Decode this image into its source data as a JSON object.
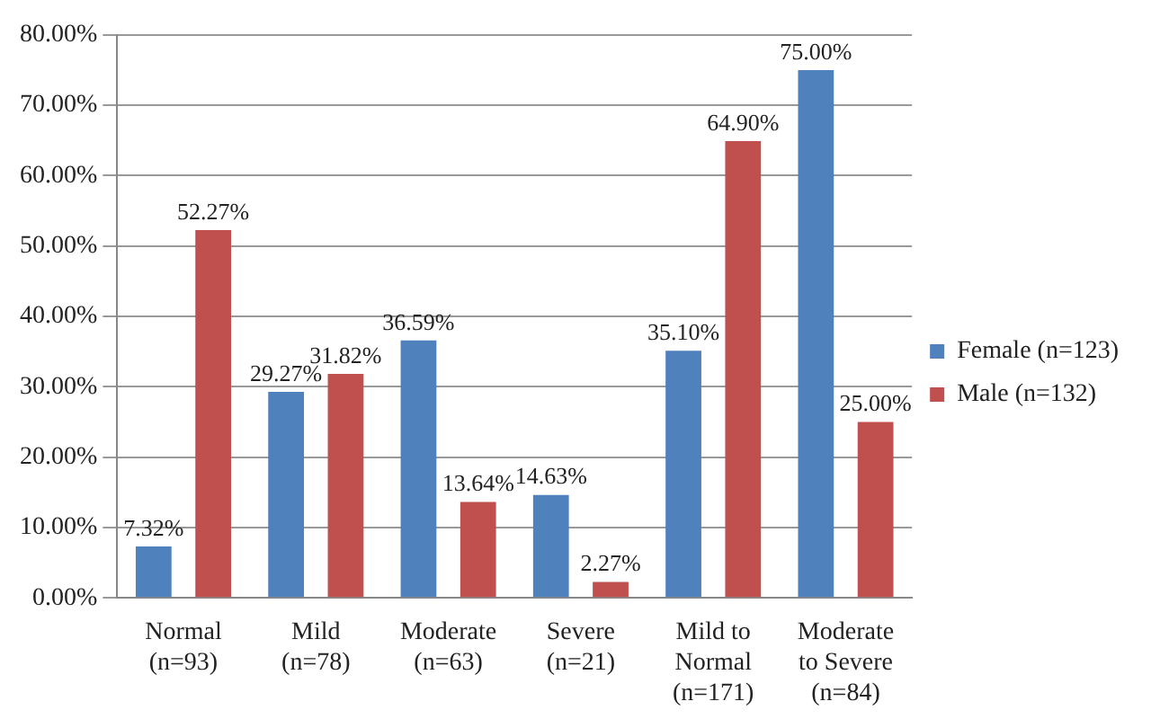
{
  "chart_data": {
    "type": "bar",
    "categories": [
      "Normal\n(n=93)",
      "Mild\n(n=78)",
      "Moderate\n(n=63)",
      "Severe\n(n=21)",
      "Mild to\nNormal\n(n=171)",
      "Moderate\nto Severe\n(n=84)"
    ],
    "series": [
      {
        "name": "Female (n=123)",
        "color": "#4f81bd",
        "values": [
          7.32,
          29.27,
          36.59,
          14.63,
          35.1,
          75.0
        ],
        "value_labels": [
          "7.32%",
          "29.27%",
          "36.59%",
          "14.63%",
          "35.10%",
          "75.00%"
        ]
      },
      {
        "name": "Male (n=132)",
        "color": "#c0504d",
        "values": [
          52.27,
          31.82,
          13.64,
          2.27,
          64.9,
          25.0
        ],
        "value_labels": [
          "52.27%",
          "31.82%",
          "13.64%",
          "2.27%",
          "64.90%",
          "25.00%"
        ]
      }
    ],
    "ylim": [
      0,
      80
    ],
    "yticks": [
      {
        "value": 0,
        "label": "0.00%"
      },
      {
        "value": 10,
        "label": "10.00%"
      },
      {
        "value": 20,
        "label": "20.00%"
      },
      {
        "value": 30,
        "label": "30.00%"
      },
      {
        "value": 40,
        "label": "40.00%"
      },
      {
        "value": 50,
        "label": "50.00%"
      },
      {
        "value": 60,
        "label": "60.00%"
      },
      {
        "value": 70,
        "label": "70.00%"
      },
      {
        "value": 80,
        "label": "80.00%"
      }
    ],
    "grid": "y",
    "legend": "right"
  }
}
